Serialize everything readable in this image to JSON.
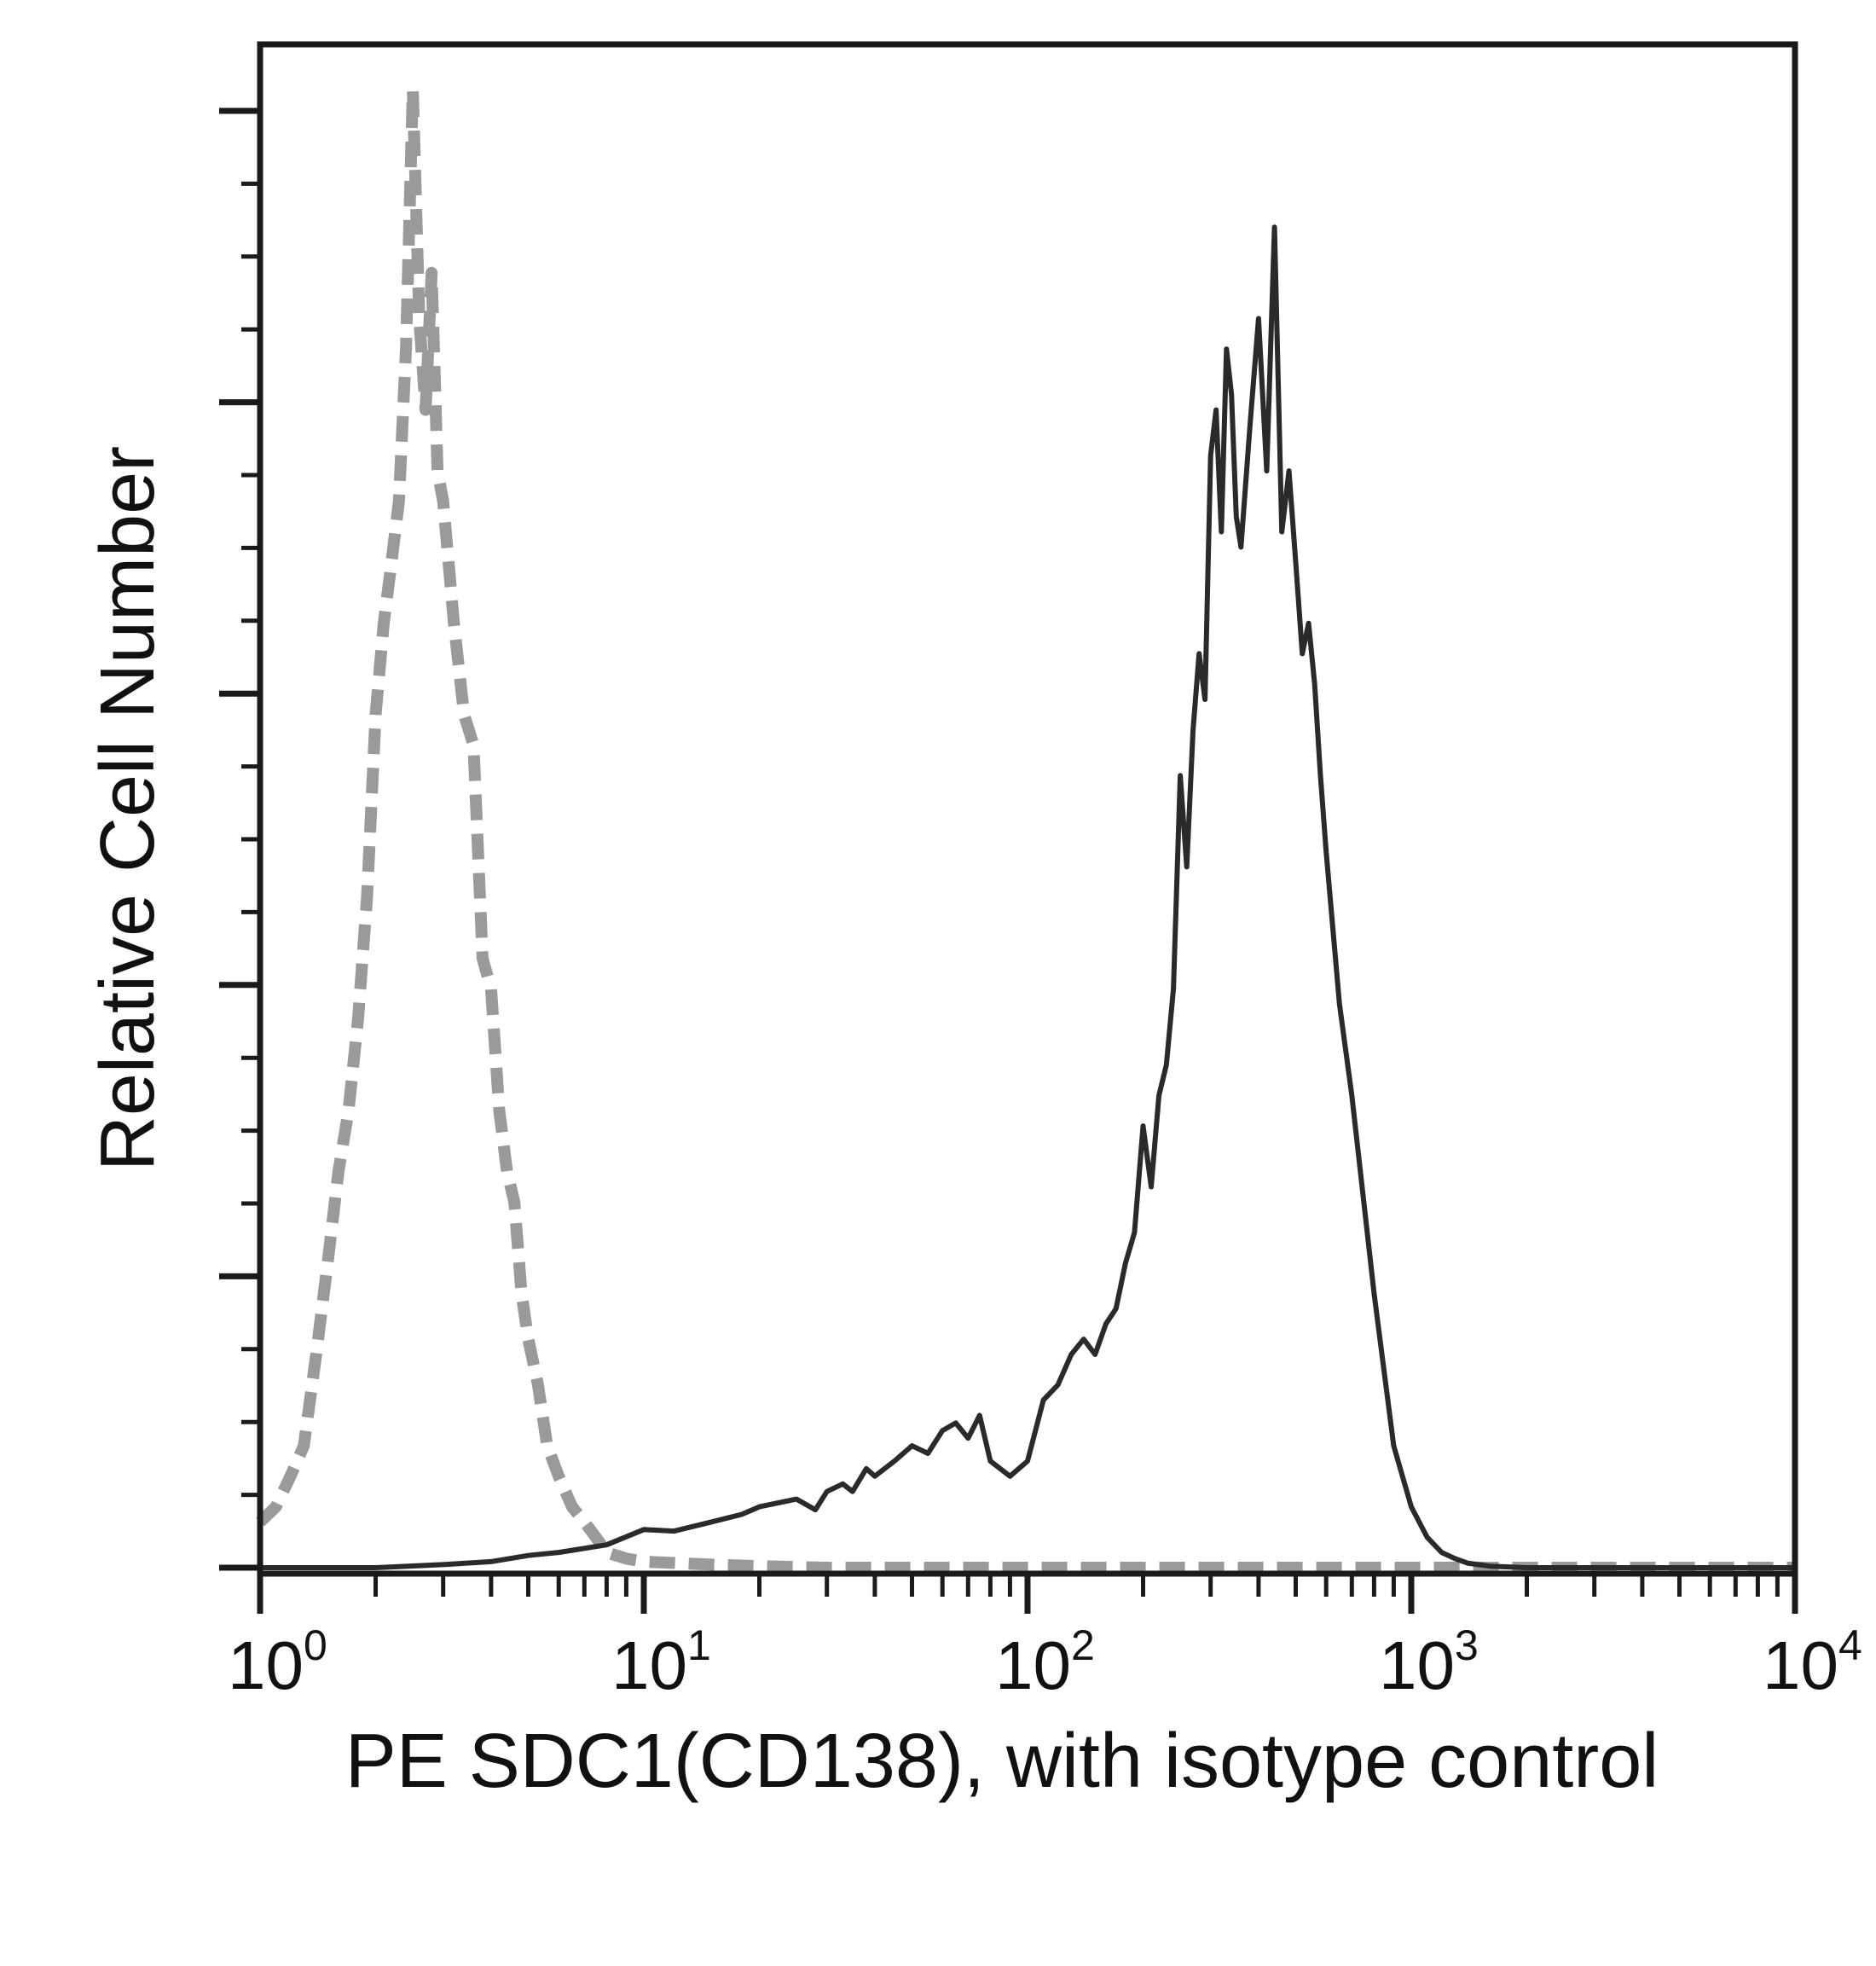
{
  "chart_data": {
    "type": "line",
    "title": "",
    "xlabel": "PE SDC1(CD138), with isotype control",
    "ylabel": "Relative Cell Number",
    "x_scale": "log",
    "xlim": [
      1,
      10000
    ],
    "ylim": [
      0,
      100
    ],
    "x_ticks": [
      {
        "value": 1,
        "base": "10",
        "exp": "0"
      },
      {
        "value": 10,
        "base": "10",
        "exp": "1"
      },
      {
        "value": 100,
        "base": "10",
        "exp": "2"
      },
      {
        "value": 1000,
        "base": "10",
        "exp": "3"
      },
      {
        "value": 10000,
        "base": "10",
        "exp": "4"
      }
    ],
    "grid": false,
    "legend": "none",
    "series": [
      {
        "style": "dashed",
        "color": "#9a9a9a",
        "x": [
          1.0,
          1.1,
          1.2,
          1.3,
          1.4,
          1.5,
          1.6,
          1.7,
          1.8,
          1.9,
          2.0,
          2.1,
          2.2,
          2.3,
          2.4,
          2.5,
          2.6,
          2.7,
          2.8,
          2.9,
          3.0,
          3.2,
          3.4,
          3.6,
          3.8,
          4.0,
          4.2,
          4.4,
          4.6,
          4.8,
          5.0,
          5.3,
          5.6,
          6.0,
          6.5,
          7.0,
          7.5,
          8.0,
          9.0,
          10,
          15,
          20,
          30,
          50,
          100,
          200,
          500,
          1000,
          2000,
          5000,
          10000
        ],
        "y": [
          3,
          4,
          6,
          8,
          14,
          20,
          26,
          30,
          36,
          44,
          56,
          62,
          66,
          70,
          80,
          97,
          82,
          76,
          85,
          72,
          70,
          62,
          56,
          54,
          40,
          38,
          30,
          26,
          24,
          18,
          15,
          12,
          8,
          6,
          4,
          3,
          2,
          1,
          0.6,
          0.4,
          0.2,
          0.1,
          0,
          0,
          0,
          0,
          0,
          0,
          0,
          0,
          0
        ]
      },
      {
        "style": "solid",
        "color": "#2a2a2a",
        "x": [
          1.0,
          2,
          3,
          4,
          5,
          6,
          8,
          10,
          12,
          15,
          18,
          20,
          25,
          28,
          30,
          33,
          35,
          38,
          40,
          45,
          50,
          55,
          60,
          65,
          70,
          75,
          80,
          90,
          100,
          110,
          120,
          130,
          140,
          150,
          160,
          170,
          180,
          190,
          200,
          210,
          220,
          230,
          240,
          250,
          260,
          270,
          280,
          290,
          300,
          310,
          320,
          330,
          340,
          350,
          360,
          380,
          400,
          420,
          440,
          460,
          480,
          500,
          520,
          540,
          560,
          580,
          600,
          650,
          700,
          800,
          900,
          1000,
          1100,
          1200,
          1300,
          1400,
          1600,
          2000,
          3000,
          5000,
          10000
        ],
        "y": [
          0,
          0,
          0.2,
          0.4,
          0.8,
          1,
          1.5,
          2.5,
          2.4,
          3,
          3.5,
          4,
          4.5,
          3.8,
          5,
          5.5,
          5,
          6.5,
          6,
          7,
          8,
          7.5,
          9,
          9.5,
          8.5,
          10,
          7,
          6,
          7,
          11,
          12,
          14,
          15,
          14,
          16,
          17,
          20,
          22,
          29,
          25,
          31,
          33,
          38,
          52,
          46,
          55,
          60,
          57,
          73,
          76,
          68,
          80,
          77,
          69,
          67,
          75,
          82,
          72,
          88,
          68,
          72,
          66,
          60,
          62,
          58,
          52,
          47,
          37,
          31,
          18,
          8,
          4,
          2,
          1,
          0.6,
          0.3,
          0.1,
          0,
          0,
          0,
          0
        ]
      }
    ]
  }
}
